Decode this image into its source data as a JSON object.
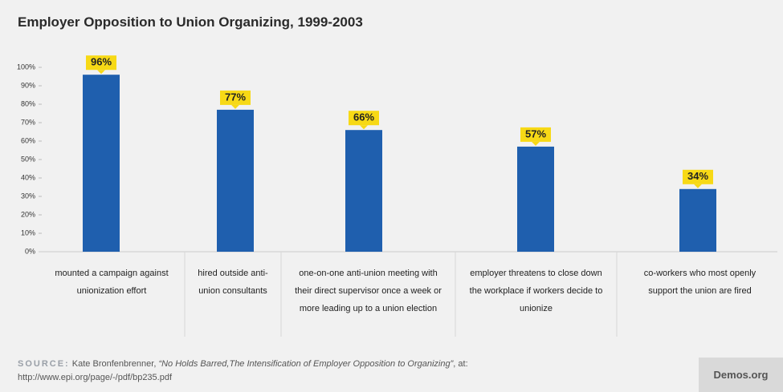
{
  "chart_data": {
    "type": "bar",
    "title": "Employer Opposition to Union Organizing, 1999-2003",
    "categories": [
      "mounted a campaign against unionization effort",
      "hired outside anti-union consultants",
      "one-on-one anti-union meeting with their direct supervisor once a week or more leading up to a union election",
      "employer threatens to close down the workplace if workers decide to unionize",
      "co-workers who most openly support the union are fired"
    ],
    "values": [
      96,
      77,
      66,
      57,
      34
    ],
    "value_labels": [
      "96%",
      "77%",
      "66%",
      "57%",
      "34%"
    ],
    "color": "#1f5fae",
    "label_color": "#f7d916",
    "ylim": [
      0,
      100
    ],
    "yticks": [
      {
        "value": 0,
        "label": "0%"
      },
      {
        "value": 10,
        "label": "10%"
      },
      {
        "value": 20,
        "label": "20%"
      },
      {
        "value": 30,
        "label": "30%"
      },
      {
        "value": 40,
        "label": "40%"
      },
      {
        "value": 50,
        "label": "50%"
      },
      {
        "value": 60,
        "label": "60%"
      },
      {
        "value": 70,
        "label": "70%"
      },
      {
        "value": 80,
        "label": "80%"
      },
      {
        "value": 90,
        "label": "90%"
      },
      {
        "value": 100,
        "label": "100%"
      }
    ],
    "grid": false
  },
  "footer": {
    "source_label": "SOURCE:",
    "source_author": "Kate Bronfenbrenner,",
    "source_title": "“No Holds Barred,The Intensification of Employer Opposition to Organizing”",
    "source_tail": ", at:",
    "source_url": "http://www.epi.org/page/-/pdf/bp235.pdf",
    "brand": "Demos.org"
  }
}
